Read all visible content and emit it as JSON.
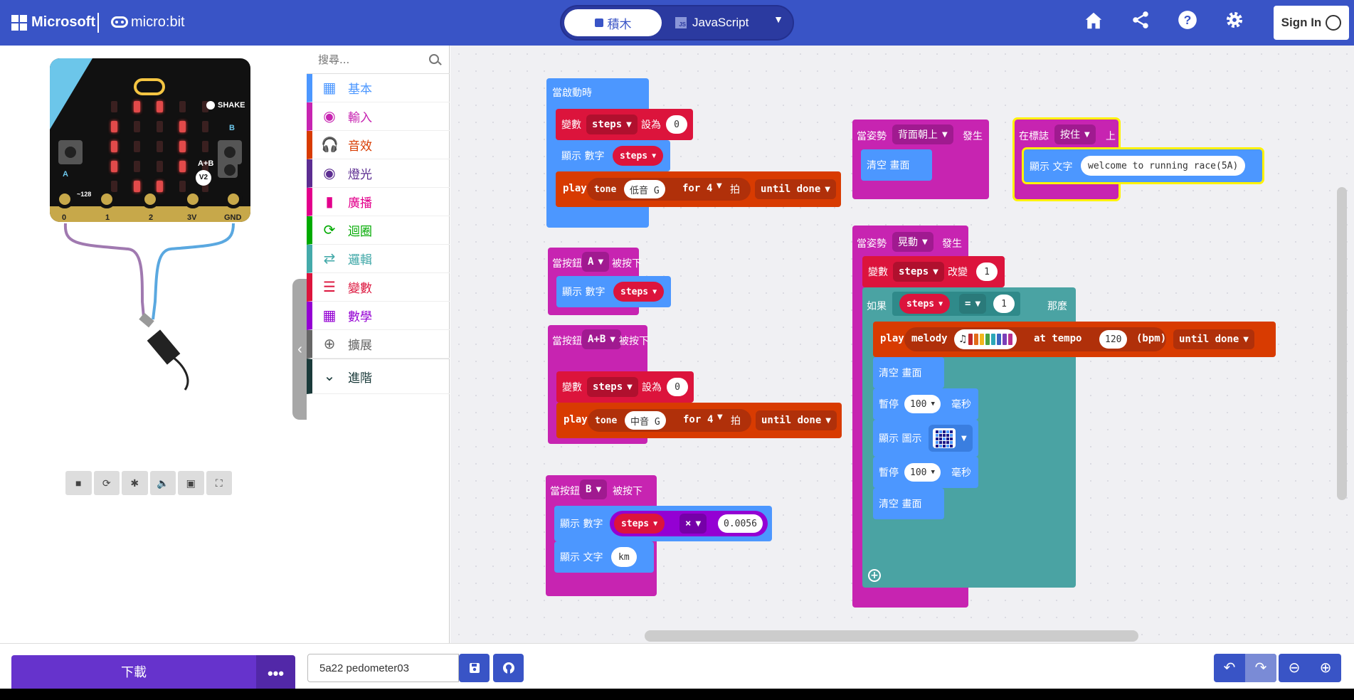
{
  "header": {
    "brand": "Microsoft",
    "product": "micro:bit",
    "mode_blocks": "積木",
    "mode_js": "JavaScript",
    "signin": "Sign In",
    "icons": [
      "home-icon",
      "share-icon",
      "help-icon",
      "settings-icon"
    ]
  },
  "simulator": {
    "shake_label": "SHAKE",
    "ab_label": "A+B",
    "v2_label": "V2",
    "a_label": "A",
    "b_label": "B",
    "sound_label": "~128",
    "pins": [
      "0",
      "1",
      "2",
      "3V",
      "GND"
    ],
    "led_on_color": "#e24a4a",
    "led_grid": [
      [
        0,
        1,
        1,
        0,
        0
      ],
      [
        1,
        0,
        0,
        1,
        0
      ],
      [
        1,
        0,
        0,
        1,
        0
      ],
      [
        1,
        0,
        0,
        1,
        0
      ],
      [
        0,
        1,
        1,
        0,
        0
      ]
    ],
    "toolbar": [
      "stop-icon",
      "restart-icon",
      "debug-icon",
      "sound-icon",
      "screenshot-icon",
      "fullscreen-icon"
    ]
  },
  "toolbox": {
    "search_placeholder": "搜尋...",
    "categories": [
      {
        "label": "基本",
        "color": "#4c97ff",
        "icon": "grid-icon"
      },
      {
        "label": "輸入",
        "color": "#c724b1",
        "icon": "target-icon"
      },
      {
        "label": "音效",
        "color": "#d83b01",
        "icon": "headphones-icon"
      },
      {
        "label": "燈光",
        "color": "#5c2d91",
        "icon": "toggle-icon"
      },
      {
        "label": "廣播",
        "color": "#e3008c",
        "icon": "signal-icon"
      },
      {
        "label": "迴圈",
        "color": "#00aa00",
        "icon": "loop-icon"
      },
      {
        "label": "邏輯",
        "color": "#44aaaa",
        "icon": "shuffle-icon"
      },
      {
        "label": "變數",
        "color": "#dc143c",
        "icon": "list-icon"
      },
      {
        "label": "數學",
        "color": "#9400d3",
        "icon": "calculator-icon"
      },
      {
        "label": "擴展",
        "color": "#666666",
        "icon": "plus-circle-icon"
      }
    ],
    "advanced": "進階"
  },
  "blocks": {
    "on_start": {
      "hat": "當啟動時",
      "set_label": "變數",
      "set_var": "steps",
      "set_to": "設為",
      "set_value": "0",
      "show_label": "顯示 數字",
      "show_var": "steps",
      "play": "play",
      "tone": "tone",
      "note": "低音 G",
      "for": "for",
      "beats": "4",
      "beat_unit": "拍",
      "until": "until done"
    },
    "on_a": {
      "hat": "當按鈕",
      "button": "A",
      "pressed": "被按下",
      "show_label": "顯示 數字",
      "show_var": "steps"
    },
    "on_ab": {
      "hat": "當按鈕",
      "button": "A+B",
      "pressed": "被按下",
      "set_label": "變數",
      "set_var": "steps",
      "set_to": "設為",
      "set_value": "0",
      "play": "play",
      "tone": "tone",
      "note": "中音 G",
      "for": "for",
      "beats": "4",
      "beat_unit": "拍",
      "until": "until done"
    },
    "on_b": {
      "hat": "當按鈕",
      "button": "B",
      "pressed": "被按下",
      "show_label": "顯示 數字",
      "show_var": "steps",
      "op": "×",
      "factor": "0.0056",
      "show_text": "顯示 文字",
      "text": "km"
    },
    "on_gesture_up": {
      "hat": "當姿勢",
      "gesture": "背面朝上",
      "happen": "發生",
      "clear": "清空 畫面"
    },
    "on_logo": {
      "hat": "在標誌",
      "action": "按住",
      "up": "上",
      "show_text": "顯示 文字",
      "text": "welcome to running race(5A)"
    },
    "on_shake": {
      "hat": "當姿勢",
      "gesture": "晃動",
      "happen": "發生",
      "change_label": "變數",
      "change_var": "steps",
      "change_by": "改變",
      "change_value": "1",
      "if": "如果",
      "cmp_var": "steps",
      "cmp_op": "=",
      "cmp_value": "1",
      "then": "那麼",
      "play": "play",
      "melody": "melody",
      "at_tempo": "at tempo",
      "tempo": "120",
      "bpm": "(bpm)",
      "until": "until done",
      "clear1": "清空 畫面",
      "pause1": "暫停",
      "pause1_ms": "100",
      "ms": "毫秒",
      "show_icon": "顯示 圖示",
      "pause2": "暫停",
      "pause2_ms": "100",
      "clear2": "清空 畫面"
    }
  },
  "footer": {
    "download": "下載",
    "more": "•••",
    "project_name": "5a22 pedometer03"
  }
}
